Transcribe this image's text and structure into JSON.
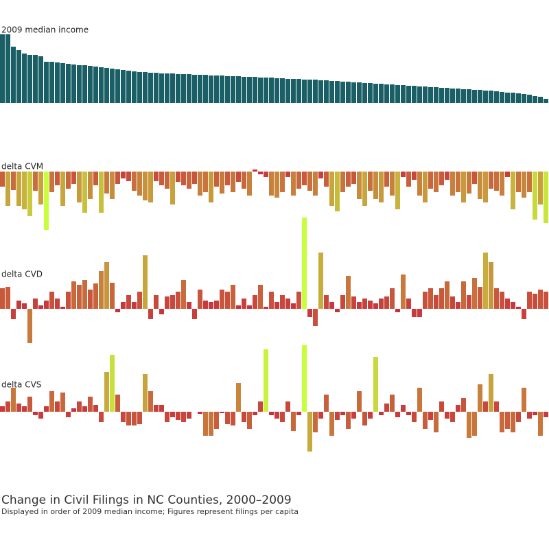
{
  "title": "Change in Civil Filings in NC Counties, 2000–2009",
  "subtitle": "Displayed in order of 2009 median income; Figures represent filings per capita",
  "chart_data": [
    {
      "type": "bar",
      "label": "2009 median income",
      "color": "#1a5f66",
      "values": [
        100,
        100,
        82,
        77,
        72,
        70,
        70,
        68,
        60,
        60,
        59,
        58,
        57,
        56,
        55,
        55,
        54,
        53,
        52,
        51,
        50,
        49,
        48,
        47,
        46,
        45,
        45,
        44,
        44,
        43,
        43,
        43,
        42,
        42,
        42,
        41,
        41,
        41,
        40,
        40,
        40,
        39,
        39,
        39,
        38,
        38,
        38,
        37,
        37,
        37,
        36,
        36,
        35,
        35,
        35,
        34,
        34,
        34,
        33,
        33,
        32,
        32,
        31,
        31,
        30,
        30,
        29,
        29,
        28,
        28,
        27,
        27,
        26,
        26,
        25,
        25,
        24,
        24,
        23,
        23,
        22,
        22,
        21,
        21,
        20,
        20,
        19,
        19,
        18,
        18,
        17,
        16,
        15,
        15,
        14,
        13,
        12,
        10,
        9,
        6
      ]
    },
    {
      "type": "bar",
      "label": "delta CVM",
      "color_range": [
        "#c8283c",
        "#c8ff3c"
      ],
      "values": [
        -22,
        -50,
        -27,
        -50,
        -55,
        -65,
        -28,
        -48,
        -85,
        -30,
        -20,
        -50,
        -25,
        -18,
        -45,
        -60,
        -40,
        -20,
        -60,
        -32,
        -40,
        -18,
        -10,
        -14,
        -28,
        -35,
        -42,
        -45,
        -14,
        -20,
        -25,
        -48,
        -15,
        -20,
        -25,
        -18,
        -35,
        -30,
        -45,
        -22,
        -32,
        -20,
        -30,
        -15,
        -25,
        -35,
        3,
        -4,
        -8,
        -35,
        -38,
        -30,
        -8,
        -35,
        -25,
        -20,
        -28,
        -35,
        -10,
        -22,
        -50,
        -58,
        -30,
        -22,
        -18,
        -40,
        -50,
        -28,
        -40,
        -45,
        -22,
        -35,
        -55,
        -8,
        -22,
        -12,
        -35,
        -45,
        -25,
        -30,
        -20,
        -12,
        -35,
        -30,
        -45,
        -32,
        -18,
        -40,
        -45,
        -25,
        -28,
        -35,
        -8,
        -55,
        -30,
        -38,
        -30,
        -70,
        -48,
        -75
      ]
    },
    {
      "type": "bar",
      "label": "delta CVD",
      "color_range": [
        "#c8283c",
        "#c8ff3c"
      ],
      "values": [
        30,
        32,
        -15,
        12,
        8,
        -50,
        15,
        5,
        12,
        25,
        15,
        3,
        25,
        40,
        35,
        42,
        28,
        37,
        55,
        68,
        38,
        -5,
        10,
        20,
        10,
        25,
        78,
        -15,
        20,
        -8,
        18,
        20,
        25,
        42,
        10,
        -15,
        28,
        12,
        10,
        12,
        28,
        25,
        35,
        5,
        15,
        5,
        20,
        35,
        3,
        25,
        10,
        20,
        15,
        8,
        25,
        133,
        -12,
        -25,
        82,
        20,
        10,
        -5,
        20,
        48,
        18,
        10,
        15,
        12,
        8,
        15,
        18,
        30,
        -5,
        50,
        15,
        -12,
        -12,
        25,
        30,
        20,
        30,
        40,
        18,
        10,
        40,
        20,
        45,
        32,
        82,
        68,
        30,
        25,
        15,
        10,
        3,
        -15,
        25,
        22,
        28,
        25
      ]
    },
    {
      "type": "bar",
      "label": "delta CVS",
      "color_range": [
        "#c8283c",
        "#c8ff3c"
      ],
      "values": [
        8,
        15,
        35,
        12,
        8,
        22,
        -5,
        -10,
        8,
        30,
        15,
        28,
        -8,
        5,
        15,
        8,
        22,
        10,
        -15,
        58,
        83,
        25,
        -15,
        -20,
        -20,
        -18,
        55,
        30,
        10,
        10,
        -15,
        -8,
        -12,
        -15,
        -10,
        0,
        -3,
        -35,
        -35,
        -25,
        -2,
        -18,
        -20,
        42,
        -15,
        -25,
        -5,
        15,
        91,
        -5,
        -10,
        -15,
        15,
        -28,
        -5,
        97,
        -58,
        -30,
        -10,
        25,
        -35,
        -12,
        -5,
        -25,
        -10,
        30,
        -20,
        -10,
        80,
        -5,
        12,
        25,
        -8,
        10,
        -5,
        -15,
        35,
        -25,
        -12,
        -30,
        15,
        -10,
        -15,
        10,
        20,
        -38,
        -35,
        40,
        15,
        55,
        15,
        -30,
        -25,
        -30,
        -15,
        35,
        -10,
        -5,
        -35,
        -8
      ]
    }
  ]
}
